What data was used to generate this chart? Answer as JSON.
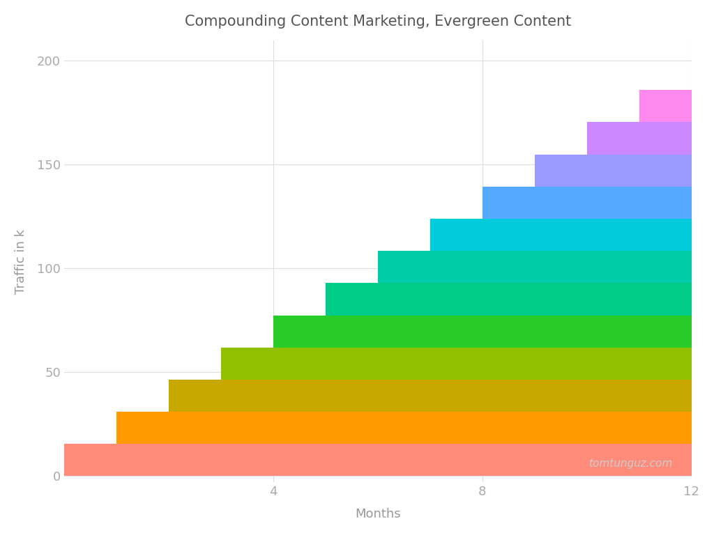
{
  "title": "Compounding Content Marketing, Evergreen Content",
  "xlabel": "Months",
  "ylabel": "Traffic in k",
  "xlim": [
    0,
    12
  ],
  "ylim": [
    -3,
    210
  ],
  "xticks": [
    4,
    8,
    12
  ],
  "yticks": [
    0,
    50,
    100,
    150,
    200
  ],
  "background_color": "#ffffff",
  "grid_color": "#dddddd",
  "watermark": "tomtunguz.com",
  "num_layers": 12,
  "base_traffic_per_layer": 15.5,
  "colors": [
    "#FF8C7A",
    "#FF9A00",
    "#C8A800",
    "#90C000",
    "#28CC28",
    "#00CC88",
    "#00CCAA",
    "#00CCDD",
    "#55AAFF",
    "#9999FF",
    "#CC88FF",
    "#FF88EE"
  ]
}
